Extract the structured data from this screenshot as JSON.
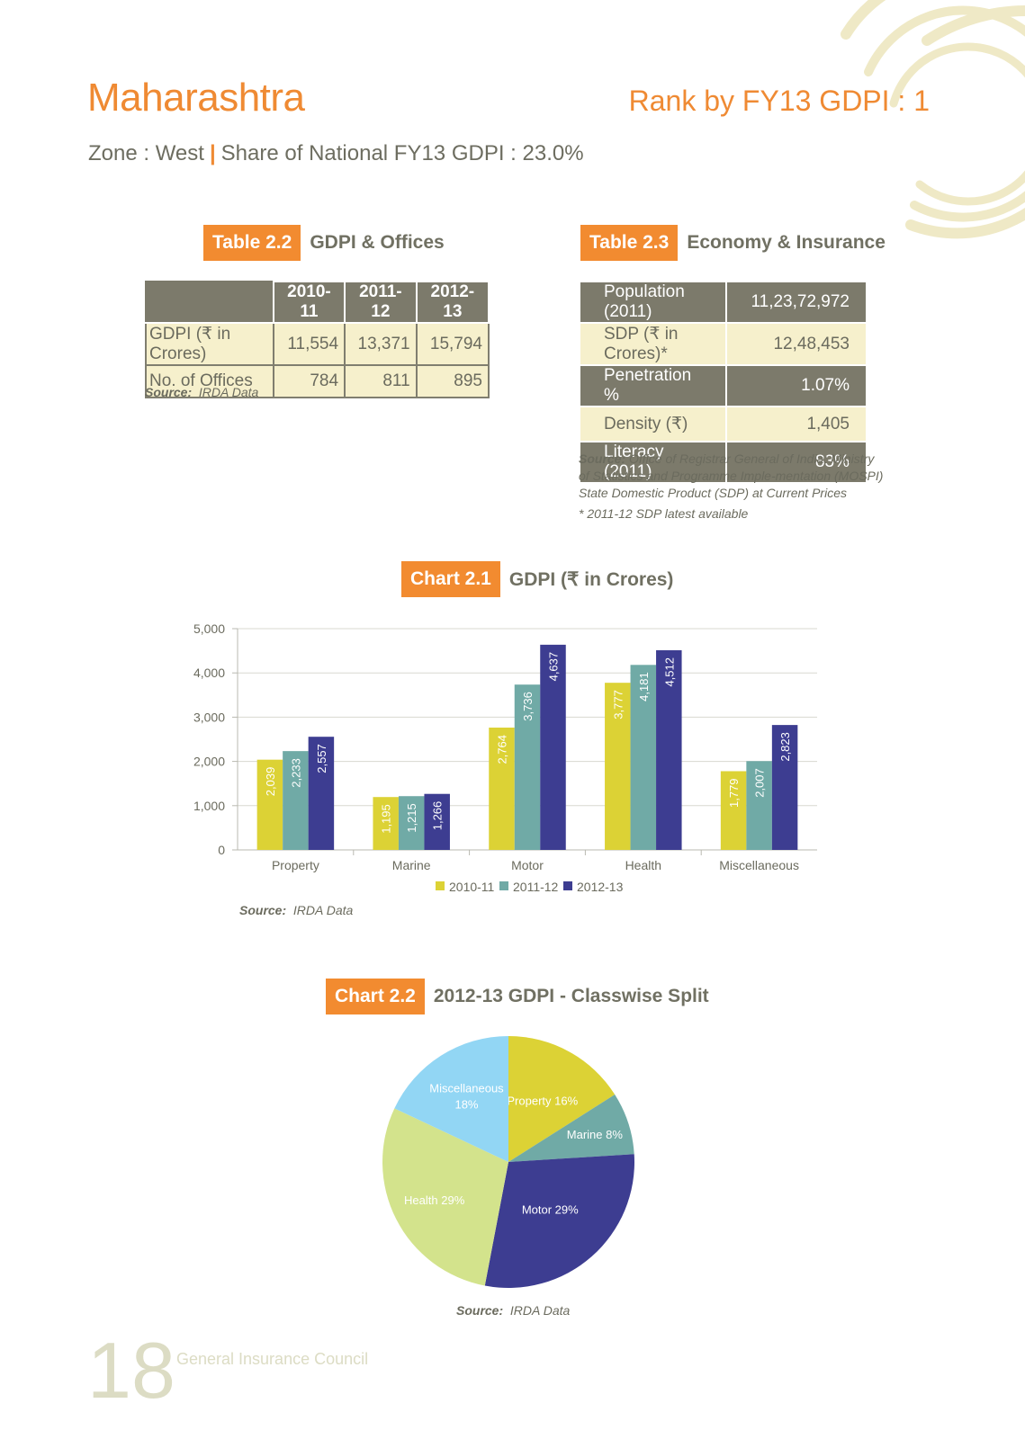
{
  "header": {
    "state": "Maharashtra",
    "rank": "Rank by FY13 GDPI : 1",
    "zone": "Zone : West",
    "share": "Share of National FY13 GDPI : 23.0%"
  },
  "table22": {
    "tag": "Table 2.2",
    "title": "GDPI & Offices",
    "headers": [
      "2010-11",
      "2011-12",
      "2012-13"
    ],
    "rows": [
      {
        "label": "GDPI (₹ in Crores)",
        "values": [
          "11,554",
          "13,371",
          "15,794"
        ]
      },
      {
        "label": "No. of Offices",
        "values": [
          "784",
          "811",
          "895"
        ]
      }
    ],
    "source_label": "Source:",
    "source_text": "IRDA Data"
  },
  "table23": {
    "tag": "Table 2.3",
    "title": "Economy & Insurance",
    "rows": [
      {
        "label": "Population (2011)",
        "value": "11,23,72,972"
      },
      {
        "label": "SDP (₹ in Crores)*",
        "value": "12,48,453"
      },
      {
        "label": "Penetration %",
        "value": "1.07%"
      },
      {
        "label": "Density (₹)",
        "value": "1,405"
      },
      {
        "label": "Literacy (2011)",
        "value": "83%"
      }
    ],
    "source_label": "Source:",
    "source_text": "Office of Registrar General of India; Ministry of Statistics and Programme Imple-mentation (MOSPI)",
    "source_text2": "State Domestic Product (SDP) at Current Prices",
    "note": "* 2011-12 SDP latest available"
  },
  "chart21": {
    "tag": "Chart 2.1",
    "title": "GDPI (₹ in Crores)",
    "source_label": "Source:",
    "source_text": "IRDA Data"
  },
  "chart22": {
    "tag": "Chart 2.2",
    "title": "2012-13 GDPI - Classwise Split",
    "source_label": "Source:",
    "source_text": "IRDA Data"
  },
  "footer": {
    "page_number": "18",
    "name": "General Insurance Council"
  },
  "colors": {
    "accent": "#f28b30",
    "y2010": "#dcd235",
    "y2011": "#70aaa6",
    "y2012": "#3d3d91",
    "property": "#dcd235",
    "marine": "#70aaa6",
    "motor": "#3d3d91",
    "health": "#d3e38c",
    "misc": "#92d6f4"
  },
  "chart_data": [
    {
      "type": "bar",
      "categories": [
        "Property",
        "Marine",
        "Motor",
        "Health",
        "Miscellaneous"
      ],
      "series": [
        {
          "name": "2010-11",
          "values": [
            2039,
            1195,
            2764,
            3777,
            1779
          ],
          "labels": [
            "2,039",
            "1,195",
            "2,764",
            "3,777",
            "1,779"
          ]
        },
        {
          "name": "2011-12",
          "values": [
            2233,
            1215,
            3736,
            4181,
            2007
          ],
          "labels": [
            "2,233",
            "1,215",
            "3,736",
            "4,181",
            "2,007"
          ]
        },
        {
          "name": "2012-13",
          "values": [
            2557,
            1266,
            4637,
            4512,
            2823
          ],
          "labels": [
            "2,557",
            "1,266",
            "4,637",
            "4,512",
            "2,823"
          ]
        }
      ],
      "ylim": [
        0,
        5000
      ],
      "yticks": [
        "0",
        "1,000",
        "2,000",
        "3,000",
        "4,000",
        "5,000"
      ],
      "legend": "bottom",
      "grid": true
    },
    {
      "type": "pie",
      "slices": [
        {
          "label": "Property 16%",
          "value": 16
        },
        {
          "label": "Marine 8%",
          "value": 8
        },
        {
          "label": "Motor 29%",
          "value": 29
        },
        {
          "label": "Health 29%",
          "value": 29
        },
        {
          "label": "Miscellaneous",
          "label2": "18%",
          "value": 18
        }
      ]
    }
  ]
}
